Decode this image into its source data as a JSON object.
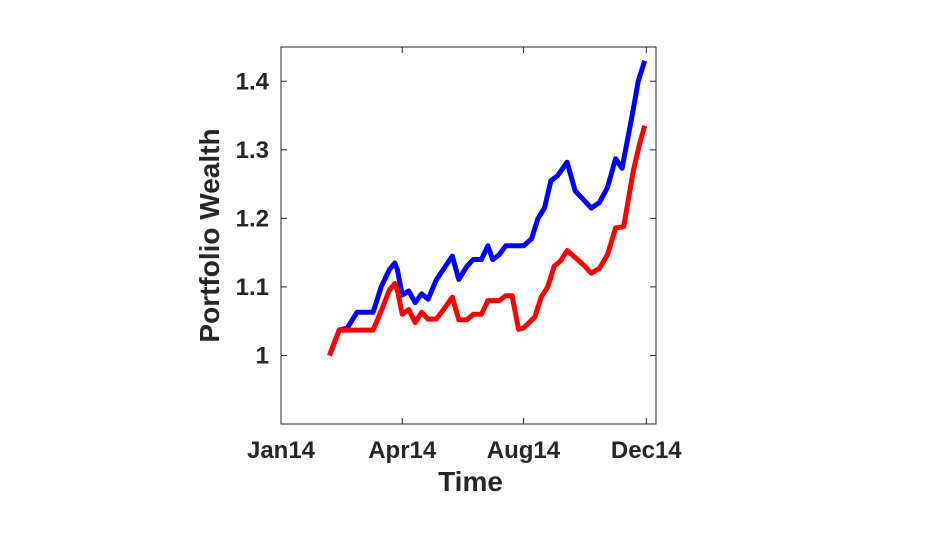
{
  "chart_data": {
    "type": "line",
    "title": "",
    "xlabel": "Time",
    "ylabel": "Portfolio Wealth",
    "xlim": [
      0,
      11.6
    ],
    "ylim": [
      0.9,
      1.45
    ],
    "x_ticks": [
      {
        "value": 0,
        "label": "Jan14"
      },
      {
        "value": 3.75,
        "label": "Apr14"
      },
      {
        "value": 7.5,
        "label": "Aug14"
      },
      {
        "value": 11.3,
        "label": "Dec14"
      }
    ],
    "y_ticks": [
      {
        "value": 1.0,
        "label": "1"
      },
      {
        "value": 1.1,
        "label": "1.1"
      },
      {
        "value": 1.2,
        "label": "1.2"
      },
      {
        "value": 1.3,
        "label": "1.3"
      },
      {
        "value": 1.4,
        "label": "1.4"
      }
    ],
    "grid": false,
    "legend": "none",
    "series": [
      {
        "color": "#0000ff",
        "points": [
          [
            1.5,
            1.0
          ],
          [
            1.8,
            1.037
          ],
          [
            2.05,
            1.04
          ],
          [
            2.35,
            1.063
          ],
          [
            2.6,
            1.063
          ],
          [
            2.85,
            1.063
          ],
          [
            3.1,
            1.1
          ],
          [
            3.35,
            1.125
          ],
          [
            3.52,
            1.135
          ],
          [
            3.6,
            1.125
          ],
          [
            3.75,
            1.088
          ],
          [
            3.95,
            1.094
          ],
          [
            4.15,
            1.077
          ],
          [
            4.35,
            1.09
          ],
          [
            4.55,
            1.082
          ],
          [
            4.8,
            1.11
          ],
          [
            5.0,
            1.124
          ],
          [
            5.3,
            1.145
          ],
          [
            5.5,
            1.111
          ],
          [
            5.75,
            1.13
          ],
          [
            5.95,
            1.14
          ],
          [
            6.2,
            1.14
          ],
          [
            6.4,
            1.16
          ],
          [
            6.55,
            1.14
          ],
          [
            6.75,
            1.147
          ],
          [
            6.95,
            1.16
          ],
          [
            7.15,
            1.16
          ],
          [
            7.5,
            1.16
          ],
          [
            7.75,
            1.17
          ],
          [
            7.95,
            1.2
          ],
          [
            8.15,
            1.215
          ],
          [
            8.35,
            1.255
          ],
          [
            8.55,
            1.262
          ],
          [
            8.85,
            1.282
          ],
          [
            9.1,
            1.24
          ],
          [
            9.4,
            1.225
          ],
          [
            9.6,
            1.215
          ],
          [
            9.85,
            1.223
          ],
          [
            10.1,
            1.245
          ],
          [
            10.35,
            1.287
          ],
          [
            10.55,
            1.273
          ],
          [
            10.9,
            1.36
          ],
          [
            11.05,
            1.4
          ],
          [
            11.25,
            1.43
          ]
        ]
      },
      {
        "color": "#ff0000",
        "points": [
          [
            1.5,
            1.0
          ],
          [
            1.8,
            1.037
          ],
          [
            2.05,
            1.037
          ],
          [
            2.35,
            1.037
          ],
          [
            2.6,
            1.037
          ],
          [
            2.85,
            1.037
          ],
          [
            3.1,
            1.065
          ],
          [
            3.35,
            1.095
          ],
          [
            3.52,
            1.105
          ],
          [
            3.6,
            1.095
          ],
          [
            3.75,
            1.06
          ],
          [
            3.95,
            1.067
          ],
          [
            4.15,
            1.048
          ],
          [
            4.35,
            1.063
          ],
          [
            4.55,
            1.053
          ],
          [
            4.8,
            1.053
          ],
          [
            5.0,
            1.065
          ],
          [
            5.3,
            1.085
          ],
          [
            5.5,
            1.052
          ],
          [
            5.75,
            1.052
          ],
          [
            5.95,
            1.06
          ],
          [
            6.2,
            1.06
          ],
          [
            6.4,
            1.08
          ],
          [
            6.55,
            1.08
          ],
          [
            6.75,
            1.08
          ],
          [
            6.95,
            1.087
          ],
          [
            7.15,
            1.087
          ],
          [
            7.35,
            1.038
          ],
          [
            7.5,
            1.04
          ],
          [
            7.85,
            1.056
          ],
          [
            8.05,
            1.085
          ],
          [
            8.25,
            1.1
          ],
          [
            8.45,
            1.13
          ],
          [
            8.65,
            1.138
          ],
          [
            8.85,
            1.153
          ],
          [
            9.1,
            1.143
          ],
          [
            9.4,
            1.13
          ],
          [
            9.6,
            1.12
          ],
          [
            9.85,
            1.127
          ],
          [
            10.1,
            1.147
          ],
          [
            10.35,
            1.186
          ],
          [
            10.6,
            1.188
          ],
          [
            10.9,
            1.27
          ],
          [
            11.1,
            1.31
          ],
          [
            11.25,
            1.335
          ]
        ]
      }
    ]
  }
}
